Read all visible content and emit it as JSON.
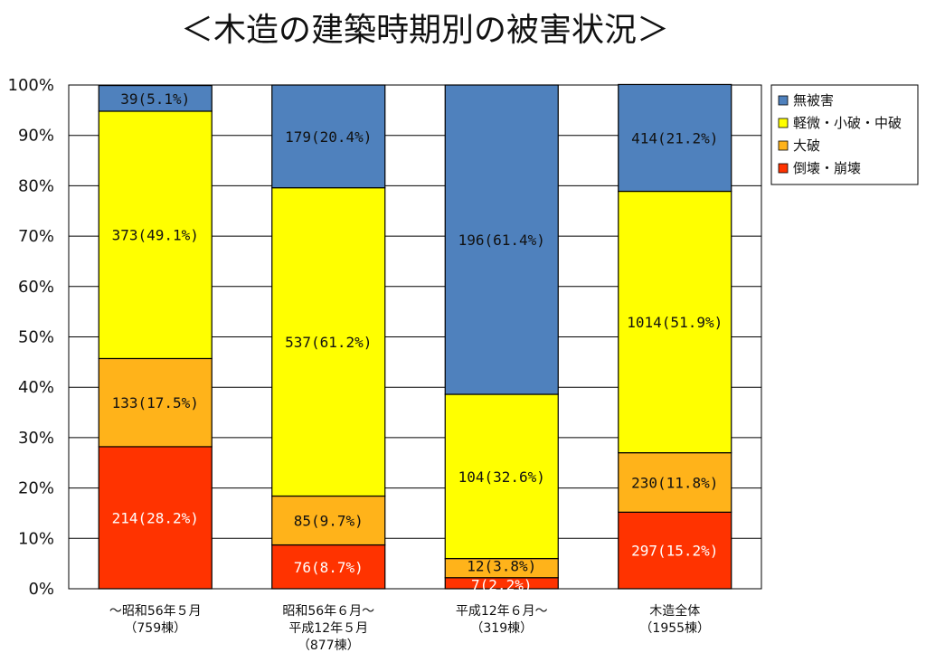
{
  "chart_data": {
    "type": "bar",
    "stacked": true,
    "percent_stacked": true,
    "title": "＜木造の建築時期別の被害状況＞",
    "ylim": [
      0,
      100
    ],
    "y_ticks": [
      "0%",
      "10%",
      "20%",
      "30%",
      "40%",
      "50%",
      "60%",
      "70%",
      "80%",
      "90%",
      "100%"
    ],
    "grid": true,
    "legend_position": "top-right",
    "categories": [
      [
        "～昭和56年５月",
        "（759棟）"
      ],
      [
        "昭和56年６月～",
        "平成12年５月",
        "（877棟）"
      ],
      [
        "平成12年６月～",
        "（319棟）"
      ],
      [
        "木造全体",
        "（1955棟）"
      ]
    ],
    "series": [
      {
        "name": "倒壊・崩壊",
        "color": "#ff3300",
        "label_color": "#ffffff",
        "values": [
          28.2,
          8.7,
          2.2,
          15.2
        ],
        "labels": [
          "214(28.2%)",
          "76(8.7%)",
          "7(2.2%)",
          "297(15.2%)"
        ]
      },
      {
        "name": "大破",
        "color": "#ffb31a",
        "label_color": "#111111",
        "values": [
          17.5,
          9.7,
          3.8,
          11.8
        ],
        "labels": [
          "133(17.5%)",
          "85(9.7%)",
          "12(3.8%)",
          "230(11.8%)"
        ]
      },
      {
        "name": "軽微・小破・中破",
        "color": "#ffff00",
        "label_color": "#111111",
        "values": [
          49.1,
          61.2,
          32.6,
          51.9
        ],
        "labels": [
          "373(49.1%)",
          "537(61.2%)",
          "104(32.6%)",
          "1014(51.9%)"
        ]
      },
      {
        "name": "無被害",
        "color": "#4f81bd",
        "label_color": "#111111",
        "values": [
          5.1,
          20.4,
          61.4,
          21.2
        ],
        "labels": [
          "39(5.1%)",
          "179(20.4%)",
          "196(61.4%)",
          "414(21.2%)"
        ]
      }
    ],
    "legend_order": [
      "無被害",
      "軽微・小破・中破",
      "大破",
      "倒壊・崩壊"
    ]
  }
}
